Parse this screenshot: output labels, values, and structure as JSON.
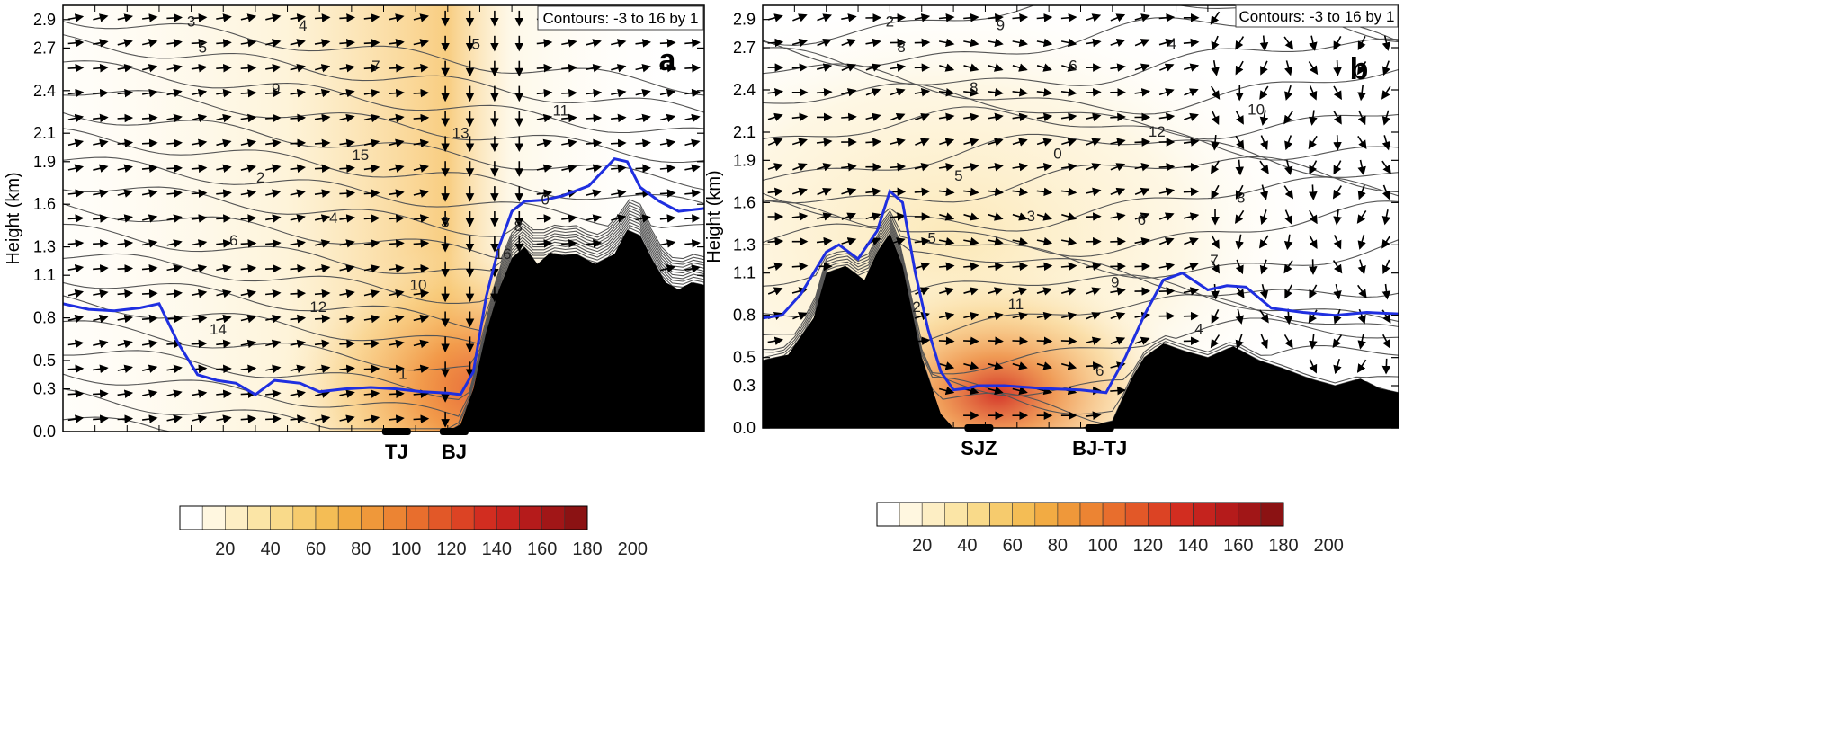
{
  "chart_data": [
    {
      "type": "heatmap",
      "panel_label": "a",
      "ylabel": "Height (km)",
      "yticks": [
        "0.0",
        "0.3",
        "0.5",
        "0.8",
        "1.1",
        "1.3",
        "1.6",
        "1.9",
        "2.1",
        "2.4",
        "2.7",
        "2.9"
      ],
      "ylim": [
        0,
        3.0
      ],
      "contour_note": "Contours: -3 to 16 by 1",
      "sites": [
        {
          "label": "TJ",
          "x": 0.52
        },
        {
          "label": "BJ",
          "x": 0.61
        }
      ],
      "blue_line": {
        "x": [
          0,
          0.04,
          0.08,
          0.12,
          0.15,
          0.18,
          0.21,
          0.24,
          0.27,
          0.3,
          0.33,
          0.37,
          0.4,
          0.44,
          0.48,
          0.52,
          0.56,
          0.6,
          0.62,
          0.64,
          0.66,
          0.68,
          0.7,
          0.72,
          0.75,
          0.78,
          0.82,
          0.86,
          0.88,
          0.9,
          0.93,
          0.96,
          1.0
        ],
        "y": [
          0.9,
          0.86,
          0.85,
          0.87,
          0.9,
          0.62,
          0.4,
          0.36,
          0.34,
          0.26,
          0.36,
          0.34,
          0.28,
          0.3,
          0.31,
          0.3,
          0.28,
          0.27,
          0.26,
          0.42,
          0.95,
          1.3,
          1.55,
          1.62,
          1.63,
          1.66,
          1.73,
          1.92,
          1.9,
          1.72,
          1.62,
          1.55,
          1.57
        ]
      },
      "terrain": {
        "x": [
          0,
          0.6,
          0.62,
          0.64,
          0.66,
          0.68,
          0.7,
          0.72,
          0.74,
          0.76,
          0.78,
          0.8,
          0.83,
          0.86,
          0.88,
          0.9,
          0.92,
          0.94,
          0.96,
          0.98,
          1.0
        ],
        "y": [
          0,
          0,
          0.05,
          0.3,
          0.7,
          1.0,
          1.22,
          1.3,
          1.18,
          1.26,
          1.24,
          1.25,
          1.18,
          1.25,
          1.42,
          1.38,
          1.2,
          1.05,
          1.0,
          1.05,
          1.03
        ]
      },
      "contour_labels": [
        "3",
        "4",
        "5",
        "6",
        "7",
        "8",
        "9",
        "10",
        "11",
        "12",
        "13",
        "14",
        "15",
        "16",
        "2",
        "1",
        "0",
        "4",
        "3",
        "5"
      ]
    },
    {
      "type": "heatmap",
      "panel_label": "b",
      "ylabel": "Height (km)",
      "yticks": [
        "0.0",
        "0.3",
        "0.5",
        "0.8",
        "1.1",
        "1.3",
        "1.6",
        "1.9",
        "2.1",
        "2.4",
        "2.7",
        "2.9"
      ],
      "ylim": [
        0,
        3.0
      ],
      "contour_note": "Contours: -3 to 16 by 1",
      "sites": [
        {
          "label": "SJZ",
          "x": 0.34
        },
        {
          "label": "BJ-TJ",
          "x": 0.53
        }
      ],
      "blue_line": {
        "x": [
          0,
          0.03,
          0.06,
          0.1,
          0.12,
          0.15,
          0.18,
          0.2,
          0.22,
          0.24,
          0.26,
          0.28,
          0.3,
          0.32,
          0.34,
          0.38,
          0.44,
          0.5,
          0.54,
          0.57,
          0.6,
          0.63,
          0.66,
          0.7,
          0.73,
          0.76,
          0.8,
          0.85,
          0.9,
          0.95,
          1.0
        ],
        "y": [
          0.78,
          0.8,
          0.95,
          1.25,
          1.3,
          1.2,
          1.4,
          1.68,
          1.6,
          1.1,
          0.7,
          0.4,
          0.27,
          0.28,
          0.3,
          0.3,
          0.28,
          0.27,
          0.25,
          0.5,
          0.8,
          1.05,
          1.1,
          0.98,
          1.01,
          1.0,
          0.85,
          0.82,
          0.8,
          0.82,
          0.81
        ]
      },
      "terrain": {
        "x": [
          0,
          0.04,
          0.08,
          0.1,
          0.13,
          0.16,
          0.18,
          0.2,
          0.22,
          0.25,
          0.28,
          0.3,
          0.5,
          0.55,
          0.58,
          0.6,
          0.63,
          0.66,
          0.7,
          0.74,
          0.78,
          0.82,
          0.86,
          0.9,
          0.94,
          0.97,
          1.0
        ],
        "y": [
          0.48,
          0.52,
          0.78,
          1.1,
          1.15,
          1.05,
          1.25,
          1.38,
          1.15,
          0.5,
          0.1,
          0,
          0,
          0.05,
          0.35,
          0.5,
          0.6,
          0.55,
          0.5,
          0.58,
          0.48,
          0.42,
          0.35,
          0.3,
          0.35,
          0.28,
          0.25
        ]
      },
      "contour_labels": [
        "2",
        "3",
        "4",
        "5",
        "6",
        "7",
        "8",
        "9",
        "10",
        "11",
        "12",
        "2",
        "0",
        "4",
        "5",
        "6",
        "8",
        "9",
        "6",
        "8"
      ]
    },
    {
      "type": "colorbar",
      "ticks": [
        "20",
        "40",
        "60",
        "80",
        "100",
        "120",
        "140",
        "160",
        "180",
        "200"
      ],
      "colors": [
        "#ffffff",
        "#fff7e0",
        "#fdeec4",
        "#fbe5a6",
        "#f9da8a",
        "#f6cb6d",
        "#f4bd55",
        "#f2ab43",
        "#ef983a",
        "#ec8433",
        "#e86e2d",
        "#e25828",
        "#dc4324",
        "#d22d20",
        "#c5231e",
        "#b51b1b",
        "#a11617",
        "#8b1213"
      ]
    }
  ]
}
